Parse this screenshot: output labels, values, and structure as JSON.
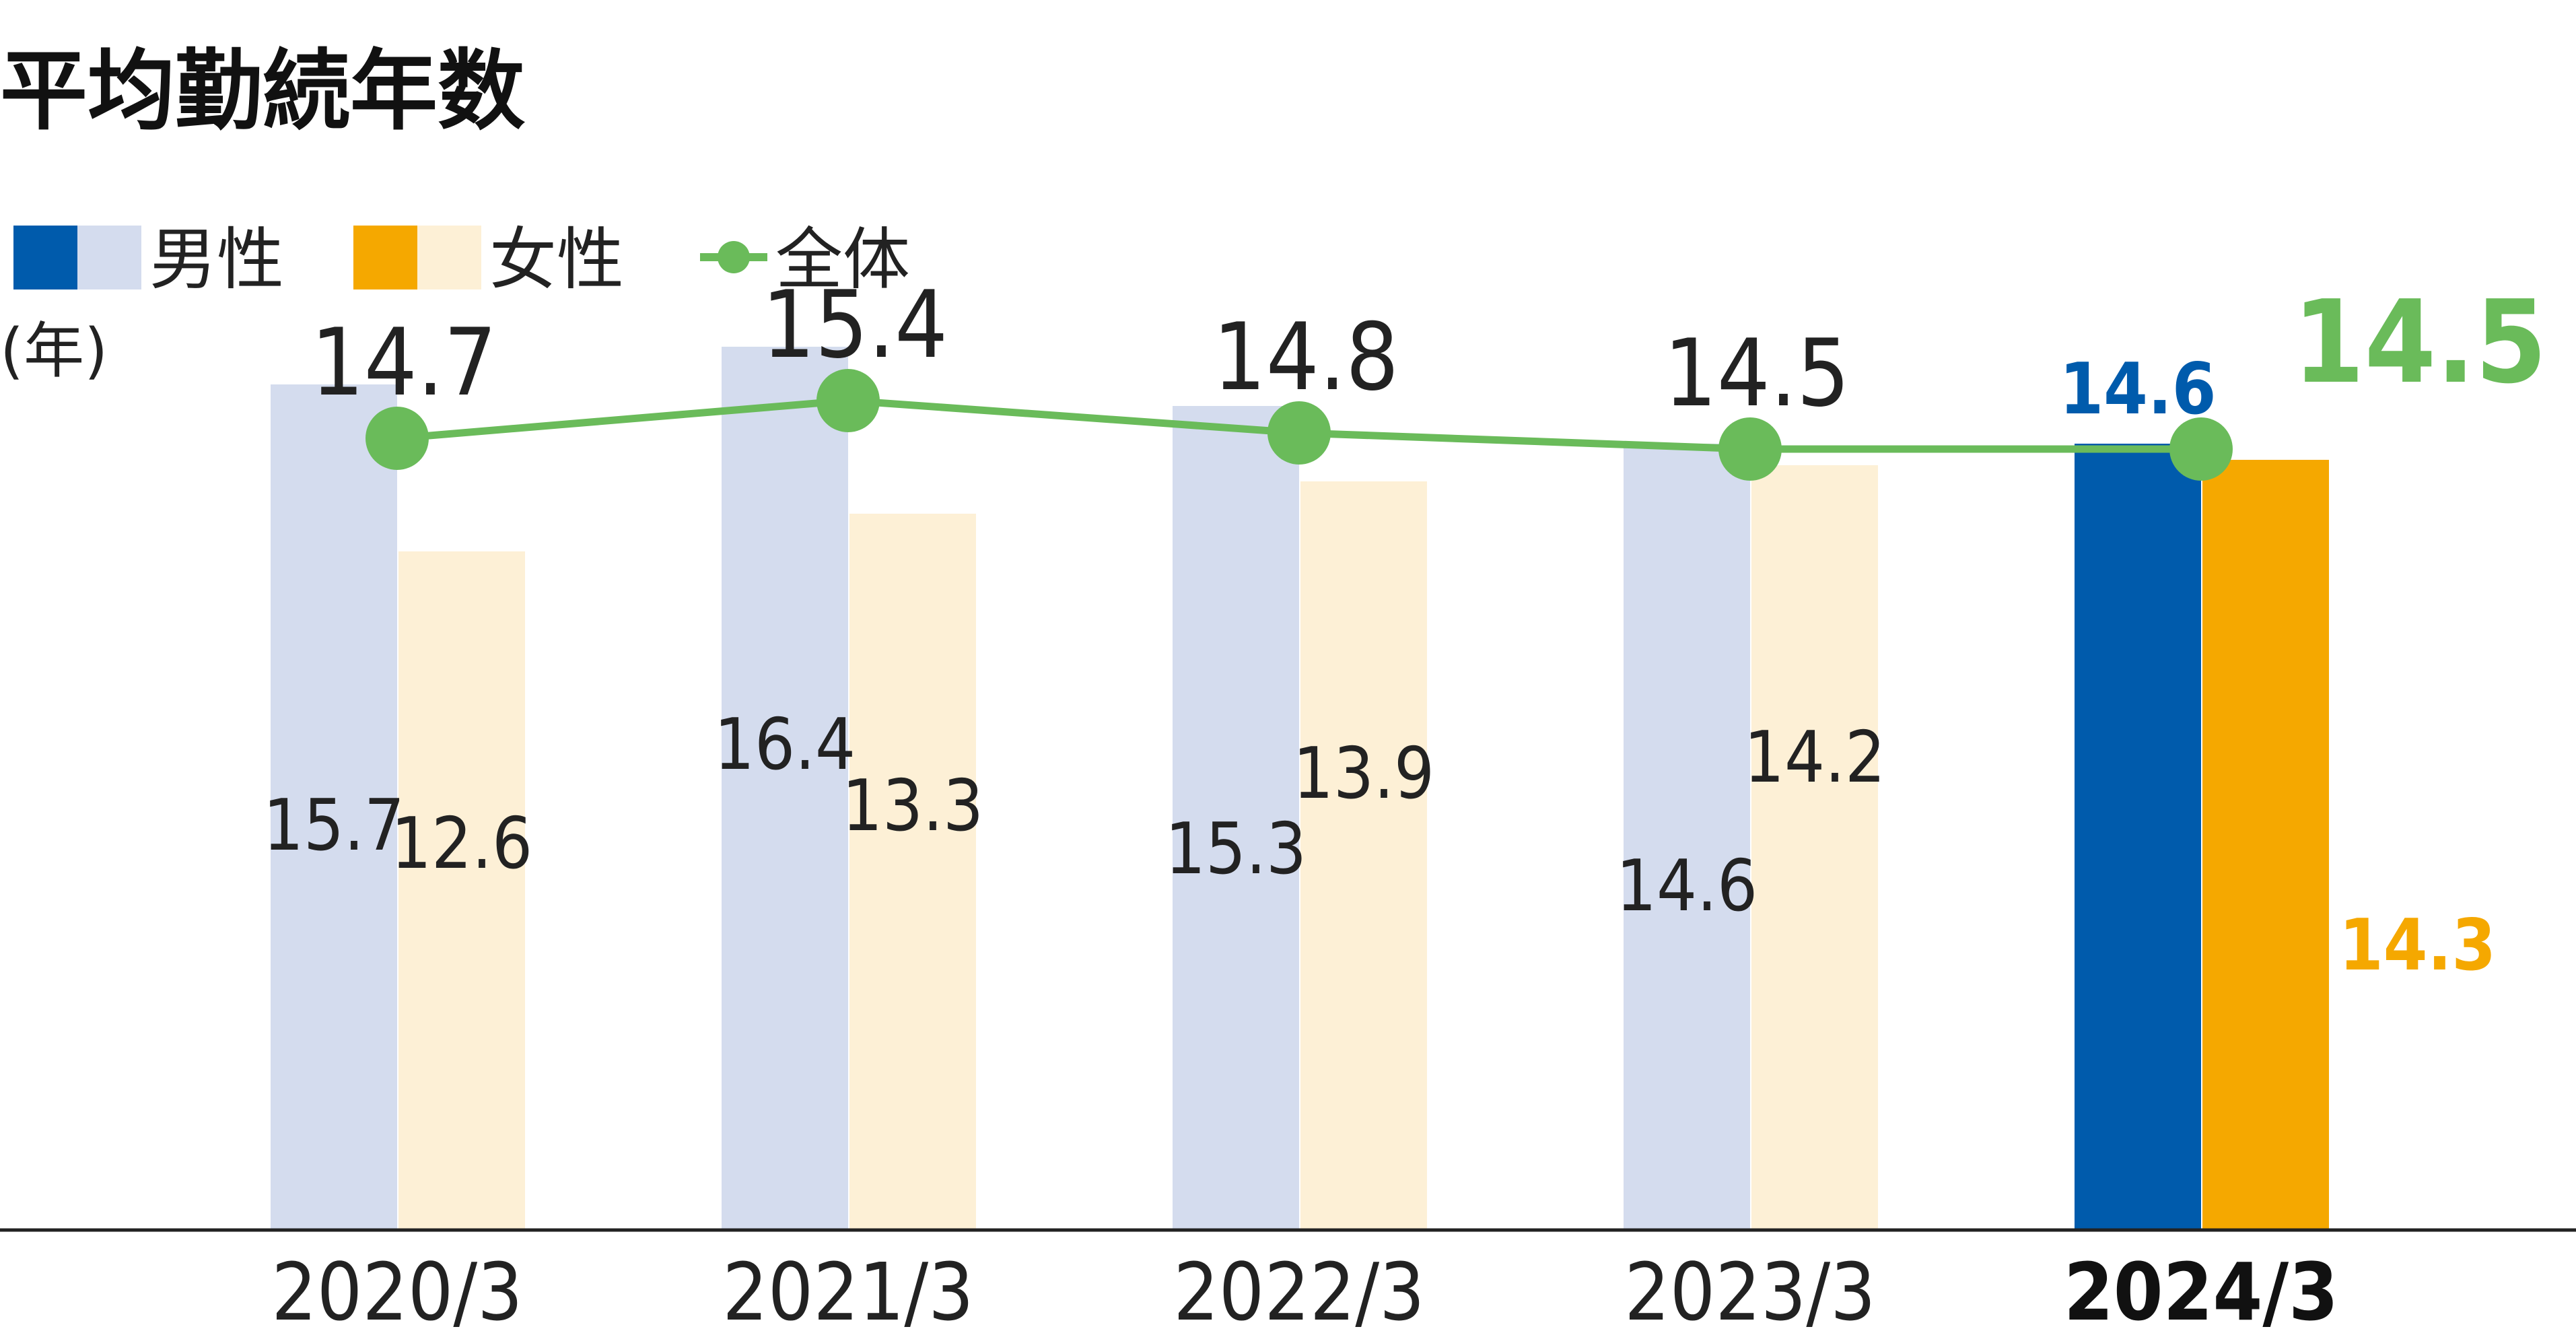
{
  "chart_data": {
    "type": "bar",
    "title": "平均勤続年数",
    "ylabel": "(年)",
    "categories": [
      "2020/3",
      "2021/3",
      "2022/3",
      "2023/3",
      "2024/3"
    ],
    "series": [
      {
        "name": "男性",
        "type": "bar",
        "values": [
          15.7,
          16.4,
          15.3,
          14.6,
          14.6
        ],
        "color": "#d4dcee",
        "highlight_color": "#005bac"
      },
      {
        "name": "女性",
        "type": "bar",
        "values": [
          12.6,
          13.3,
          13.9,
          14.2,
          14.3
        ],
        "color": "#fdf0d6",
        "highlight_color": "#f5a800"
      },
      {
        "name": "全体",
        "type": "line",
        "values": [
          14.7,
          15.4,
          14.8,
          14.5,
          14.5
        ],
        "color": "#6abb5a"
      }
    ],
    "highlight_category": "2024/3",
    "ylim": [
      0,
      17
    ],
    "grid": false,
    "legend_position": "top-left"
  }
}
